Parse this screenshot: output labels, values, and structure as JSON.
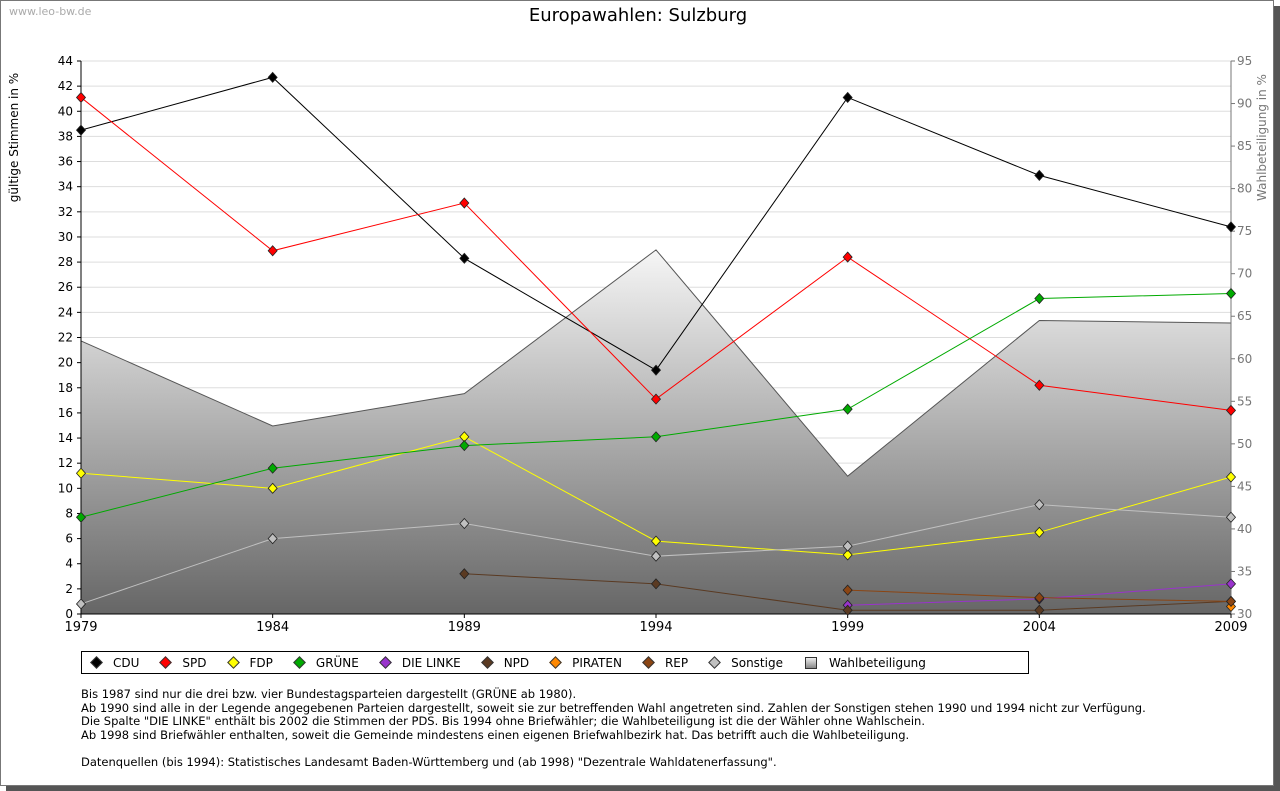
{
  "watermark": "www.leo-bw.de",
  "chart_data": {
    "type": "line",
    "title": "Europawahlen: Sulzburg",
    "ylabel": "gültige Stimmen in %",
    "y2label": "Wahlbeteiligung in %",
    "x": [
      "1979",
      "1984",
      "1989",
      "1994",
      "1999",
      "2004",
      "2009"
    ],
    "ylim": [
      0,
      44
    ],
    "y2lim": [
      30,
      95
    ],
    "yticks": [
      0,
      2,
      4,
      6,
      8,
      10,
      12,
      14,
      16,
      18,
      20,
      22,
      24,
      26,
      28,
      30,
      32,
      34,
      36,
      38,
      40,
      42,
      44
    ],
    "y2ticks": [
      30,
      35,
      40,
      45,
      50,
      55,
      60,
      65,
      70,
      75,
      80,
      85,
      90,
      95
    ],
    "grid": true,
    "legend_position": "bottom",
    "series": [
      {
        "name": "CDU",
        "color": "#000000",
        "values": [
          38.5,
          42.7,
          28.3,
          19.4,
          41.1,
          34.9,
          30.8
        ]
      },
      {
        "name": "SPD",
        "color": "#ff0000",
        "values": [
          41.1,
          28.9,
          32.7,
          17.1,
          28.4,
          18.2,
          16.2
        ]
      },
      {
        "name": "FDP",
        "color": "#ffff00",
        "values": [
          11.2,
          10.0,
          14.1,
          5.8,
          4.7,
          6.5,
          10.9
        ]
      },
      {
        "name": "GRÜNE",
        "color": "#00aa00",
        "values": [
          7.7,
          11.6,
          13.4,
          14.1,
          16.3,
          25.1,
          25.5
        ]
      },
      {
        "name": "DIE LINKE",
        "color": "#9933cc",
        "values": [
          null,
          null,
          null,
          null,
          0.7,
          1.2,
          2.4
        ]
      },
      {
        "name": "NPD",
        "color": "#5a3a22",
        "values": [
          null,
          null,
          3.2,
          2.4,
          0.3,
          0.3,
          1.0
        ]
      },
      {
        "name": "PIRATEN",
        "color": "#ff8800",
        "values": [
          null,
          null,
          null,
          null,
          null,
          null,
          0.6
        ]
      },
      {
        "name": "REP",
        "color": "#8b4513",
        "values": [
          null,
          null,
          null,
          null,
          1.9,
          1.3,
          1.0
        ]
      },
      {
        "name": "Sonstige",
        "color": "#c0c0c0",
        "values": [
          0.8,
          6.0,
          7.2,
          4.6,
          5.4,
          8.7,
          7.7
        ]
      }
    ],
    "turnout": {
      "name": "Wahlbeteiligung",
      "values": [
        62.1,
        52.1,
        55.9,
        72.8,
        46.2,
        64.5,
        64.2
      ]
    }
  },
  "notes": [
    "Bis 1987 sind nur die drei bzw. vier Bundestagsparteien dargestellt (GRÜNE ab 1980).",
    "Ab 1990 sind alle in der Legende angegebenen Parteien dargestellt, soweit sie zur betreffenden Wahl angetreten sind. Zahlen der Sonstigen stehen 1990 und 1994 nicht zur Verfügung.",
    "Die Spalte \"DIE LINKE\" enthält bis 2002 die Stimmen der PDS. Bis 1994 ohne Briefwähler; die Wahlbeteiligung ist die der Wähler ohne Wahlschein.",
    "Ab 1998 sind Briefwähler enthalten, soweit die Gemeinde mindestens einen eigenen Briefwahlbezirk hat. Das betrifft auch die Wahlbeteiligung.",
    "",
    "Datenquellen (bis 1994): Statistisches Landesamt Baden-Württemberg und (ab 1998) \"Dezentrale Wahldatenerfassung\"."
  ]
}
